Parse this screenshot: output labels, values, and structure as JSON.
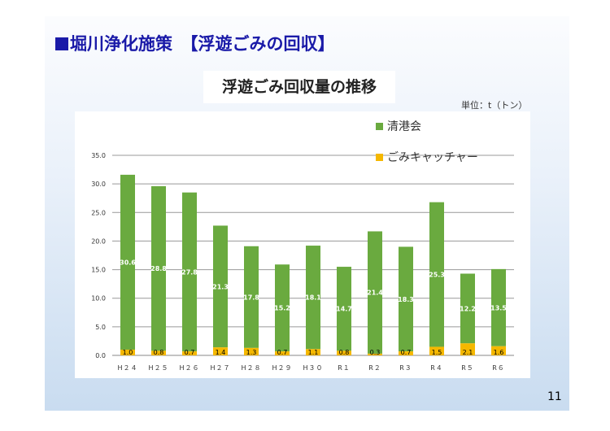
{
  "header": {
    "title": "堀川浄化施策　【浮遊ごみの回収】",
    "subtitle": "浮遊ごみ回収量の推移",
    "unit": "単位：t（トン）",
    "page_number": "11"
  },
  "chart_data": {
    "type": "bar",
    "stacked": true,
    "title": "浮遊ごみ回収量の推移",
    "categories": [
      "H２４",
      "H２５",
      "H２６",
      "H２７",
      "H２８",
      "H２９",
      "H３０",
      "R１",
      "R２",
      "R３",
      "R４",
      "R５",
      "R６"
    ],
    "series": [
      {
        "name": "ごみキャッチャー",
        "color": "#f5b800",
        "values": [
          1.0,
          0.8,
          0.7,
          1.4,
          1.3,
          0.7,
          1.1,
          0.8,
          0.3,
          0.7,
          1.5,
          2.1,
          1.6
        ]
      },
      {
        "name": "清港会",
        "color": "#6aaa3f",
        "values": [
          30.6,
          28.8,
          27.8,
          21.3,
          17.8,
          15.2,
          18.1,
          14.7,
          21.4,
          18.3,
          25.3,
          12.2,
          13.5
        ]
      }
    ],
    "legend_order": [
      "清港会",
      "ごみキャッチャー"
    ],
    "yticks": [
      "0.0",
      "5.0",
      "10.0",
      "15.0",
      "20.0",
      "25.0",
      "30.0",
      "35.0"
    ],
    "ylim": [
      0,
      35
    ],
    "grid": true,
    "legend": "top-right",
    "ylabel": "",
    "xlabel": ""
  }
}
